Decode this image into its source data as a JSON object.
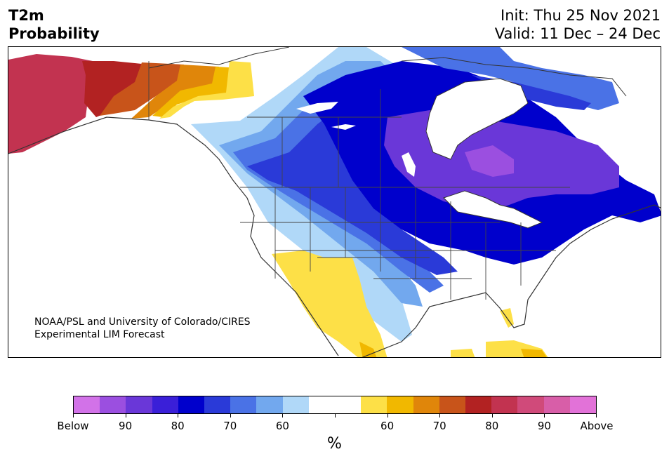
{
  "title": {
    "line1": "T2m",
    "line2": "Probability"
  },
  "init": {
    "line1": "Init: Thu 25 Nov 2021",
    "line2": "Valid: 11 Dec – 24 Dec"
  },
  "credit": {
    "line1": "NOAA/PSL and University of Colorado/CIRES",
    "line2": "Experimental LIM Forecast"
  },
  "colorbar": {
    "colors": [
      "#d272e8",
      "#9b4fe0",
      "#6a37d8",
      "#3a1fd8",
      "#0000cc",
      "#2a3ad8",
      "#4a72e6",
      "#72a8ee",
      "#b0d8f8",
      "#ffffff",
      "#ffffff",
      "#fde047",
      "#f1b800",
      "#e0860a",
      "#c8541a",
      "#b22222",
      "#c23350",
      "#d04a7a",
      "#d85ea8",
      "#e272d8"
    ],
    "tick_labels": [
      {
        "index": 0,
        "text": "Below"
      },
      {
        "index": 2,
        "text": "90"
      },
      {
        "index": 4,
        "text": "80"
      },
      {
        "index": 6,
        "text": "70"
      },
      {
        "index": 8,
        "text": "60"
      },
      {
        "index": 10,
        "text": ""
      },
      {
        "index": 12,
        "text": "60"
      },
      {
        "index": 14,
        "text": "70"
      },
      {
        "index": 16,
        "text": "80"
      },
      {
        "index": 18,
        "text": "90"
      },
      {
        "index": 20,
        "text": "Above"
      }
    ],
    "unit": "%"
  },
  "map": {
    "colors": {
      "below_80": "#6a37d8",
      "below_90": "#9b4fe0",
      "below_70": "#0000cc",
      "below_60": "#2a3ad8",
      "below_50": "#4a72e6",
      "below_40": "#72a8ee",
      "below_30": "#b0d8f8",
      "above_40": "#fde047",
      "above_50": "#f1b800",
      "above_60": "#e0860a",
      "above_70": "#c8541a",
      "above_80": "#b22222",
      "above_90": "#c23350",
      "land_line": "#333333"
    }
  }
}
